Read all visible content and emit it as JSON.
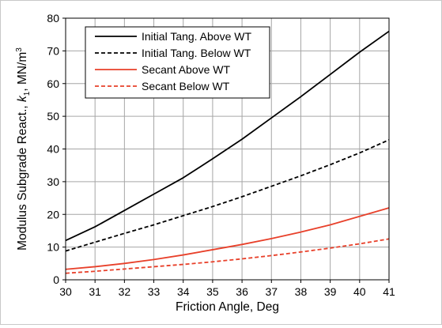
{
  "chart_data": {
    "type": "line",
    "title": "",
    "xlabel": "Friction Angle, Deg",
    "ylabel": {
      "main": "Modulus  Subgrade React., ",
      "var": "k",
      "sub": "1",
      "rest": ", MN/m",
      "sup": "3"
    },
    "xlim": [
      30,
      41
    ],
    "ylim": [
      0,
      80
    ],
    "xticks": [
      30,
      31,
      32,
      33,
      34,
      35,
      36,
      37,
      38,
      39,
      40,
      41
    ],
    "yticks": [
      0,
      10,
      20,
      30,
      40,
      50,
      60,
      70,
      80
    ],
    "grid": true,
    "legend_position": "top-left",
    "x": [
      30,
      31,
      32,
      33,
      34,
      35,
      36,
      37,
      38,
      39,
      40,
      41
    ],
    "series": [
      {
        "name": "Initial Tang. Above WT",
        "color": "#000000",
        "dash": "solid",
        "values": [
          12.0,
          16.2,
          21.2,
          26.2,
          31.2,
          37.0,
          43.0,
          49.5,
          56.0,
          62.8,
          69.6,
          76.0
        ]
      },
      {
        "name": "Initial Tang. Below WT",
        "color": "#000000",
        "dash": "dashed",
        "values": [
          8.8,
          11.5,
          14.2,
          16.8,
          19.6,
          22.4,
          25.4,
          28.6,
          31.8,
          35.2,
          38.8,
          42.8
        ]
      },
      {
        "name": "Secant Above WT",
        "color": "#e8402a",
        "dash": "solid",
        "values": [
          3.2,
          4.0,
          5.0,
          6.2,
          7.6,
          9.2,
          10.8,
          12.6,
          14.6,
          16.8,
          19.4,
          22.0
        ]
      },
      {
        "name": "Secant Below WT",
        "color": "#e8402a",
        "dash": "dashed",
        "values": [
          2.0,
          2.6,
          3.3,
          4.0,
          4.7,
          5.5,
          6.4,
          7.4,
          8.5,
          9.7,
          11.0,
          12.5
        ]
      }
    ]
  }
}
